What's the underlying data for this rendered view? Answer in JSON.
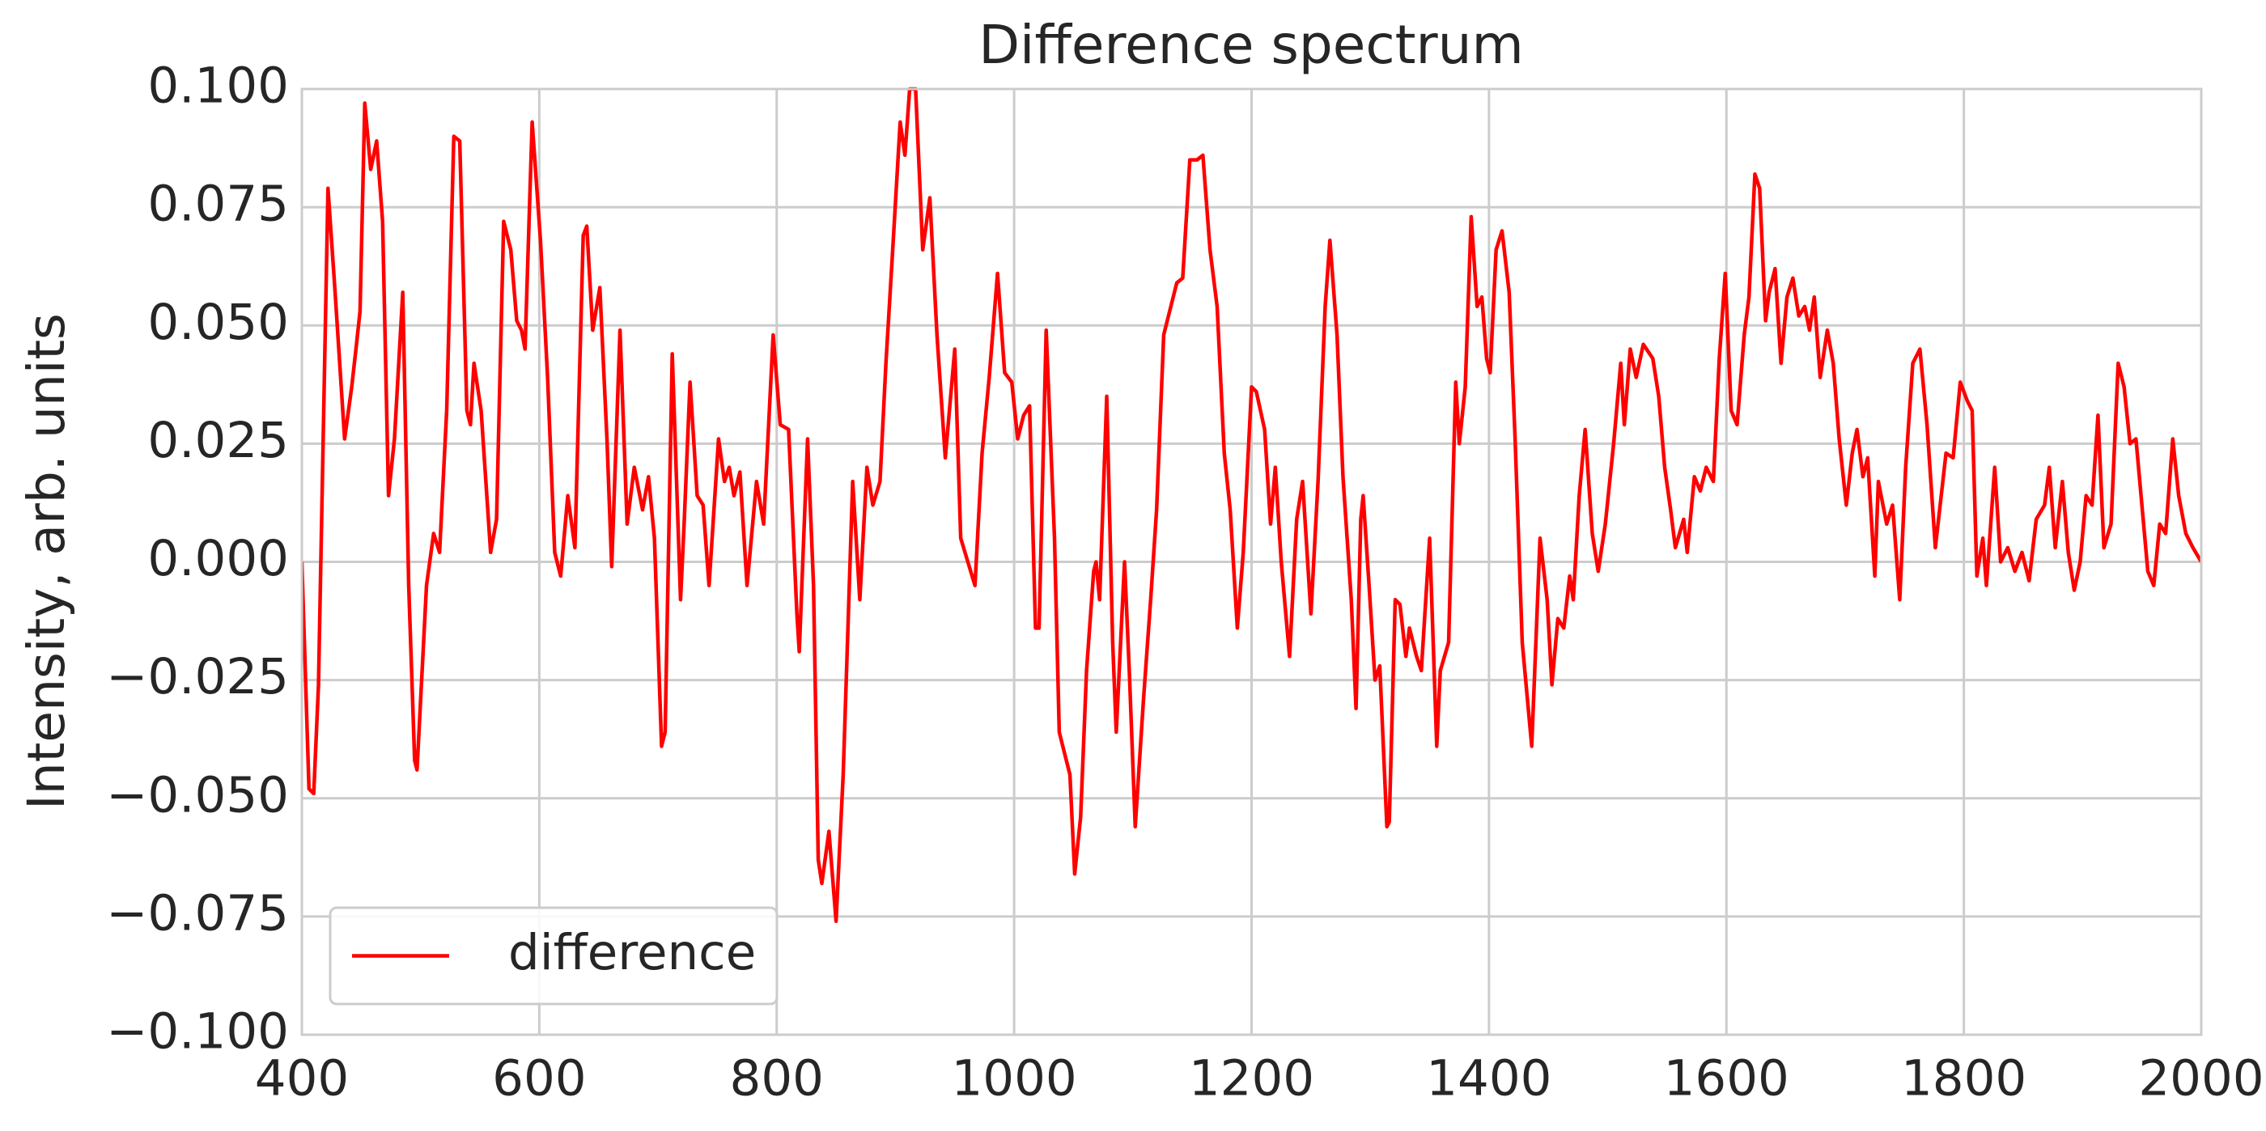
{
  "chart_data": {
    "type": "line",
    "title": "Difference spectrum",
    "y_label": "Intensity, arb. units",
    "x": [
      400,
      406,
      410,
      414,
      422,
      428,
      436,
      442,
      446,
      449,
      453,
      458,
      463,
      468,
      473,
      478,
      485,
      490,
      495,
      497,
      505,
      511,
      516,
      522,
      528,
      533,
      539,
      542,
      545,
      551,
      559,
      564,
      570,
      576,
      581,
      585,
      588,
      594,
      601,
      607,
      613,
      618,
      624,
      630,
      637,
      640,
      645,
      651,
      657,
      661,
      668,
      674,
      680,
      687,
      692,
      697,
      703,
      706,
      712,
      719,
      722,
      727,
      733,
      738,
      743,
      751,
      756,
      760,
      764,
      769,
      775,
      783,
      789,
      797,
      803,
      810,
      817,
      819,
      826,
      831,
      835,
      838,
      844,
      850,
      856,
      864,
      870,
      876,
      881,
      887,
      892,
      897,
      904,
      908,
      912,
      917,
      923,
      929,
      935,
      942,
      950,
      955,
      961,
      967,
      973,
      979,
      986,
      992,
      998,
      1003,
      1008,
      1013,
      1018,
      1021,
      1027,
      1034,
      1038,
      1042,
      1047,
      1051,
      1056,
      1061,
      1067,
      1069,
      1072,
      1078,
      1083,
      1086,
      1093,
      1097,
      1102,
      1109,
      1115,
      1120,
      1126,
      1132,
      1137,
      1142,
      1148,
      1154,
      1159,
      1165,
      1171,
      1177,
      1182,
      1188,
      1193,
      1200,
      1204,
      1211,
      1216,
      1220,
      1225,
      1232,
      1238,
      1243,
      1250,
      1256,
      1262,
      1266,
      1272,
      1277,
      1284,
      1288,
      1292,
      1294,
      1299,
      1304,
      1308,
      1314,
      1316,
      1321,
      1325,
      1330,
      1333,
      1339,
      1343,
      1350,
      1356,
      1359,
      1366,
      1372,
      1375,
      1380,
      1385,
      1390,
      1394,
      1398,
      1401,
      1406,
      1411,
      1417,
      1422,
      1428,
      1436,
      1443,
      1449,
      1453,
      1458,
      1463,
      1468,
      1471,
      1476,
      1481,
      1487,
      1492,
      1498,
      1505,
      1511,
      1514,
      1519,
      1524,
      1530,
      1538,
      1543,
      1548,
      1553,
      1557,
      1564,
      1567,
      1573,
      1578,
      1583,
      1589,
      1594,
      1599,
      1604,
      1609,
      1615,
      1619,
      1624,
      1628,
      1633,
      1636,
      1641,
      1646,
      1651,
      1656,
      1661,
      1666,
      1670,
      1674,
      1679,
      1685,
      1690,
      1695,
      1701,
      1706,
      1710,
      1715,
      1719,
      1725,
      1728,
      1735,
      1740,
      1746,
      1751,
      1757,
      1763,
      1769,
      1776,
      1785,
      1791,
      1797,
      1803,
      1807,
      1811,
      1816,
      1819,
      1826,
      1831,
      1837,
      1843,
      1849,
      1855,
      1861,
      1868,
      1872,
      1877,
      1883,
      1888,
      1893,
      1898,
      1903,
      1908,
      1913,
      1918,
      1924,
      1930,
      1935,
      1940,
      1945,
      1950,
      1955,
      1960,
      1965,
      1970,
      1976,
      1981,
      1987,
      1993,
      2000
    ],
    "series": [
      {
        "name": "difference",
        "color": "#ff0000",
        "values": [
          0.0,
          -0.048,
          -0.049,
          -0.026,
          0.079,
          0.057,
          0.026,
          0.037,
          0.046,
          0.053,
          0.097,
          0.083,
          0.089,
          0.072,
          0.014,
          0.026,
          0.057,
          -0.005,
          -0.042,
          -0.044,
          -0.005,
          0.006,
          0.002,
          0.032,
          0.09,
          0.089,
          0.032,
          0.029,
          0.042,
          0.032,
          0.002,
          0.009,
          0.072,
          0.066,
          0.051,
          0.049,
          0.045,
          0.093,
          0.068,
          0.039,
          0.002,
          -0.003,
          0.014,
          0.003,
          0.069,
          0.071,
          0.049,
          0.058,
          0.026,
          -0.001,
          0.049,
          0.008,
          0.02,
          0.011,
          0.018,
          0.005,
          -0.039,
          -0.036,
          0.044,
          -0.008,
          0.008,
          0.038,
          0.014,
          0.012,
          -0.005,
          0.026,
          0.017,
          0.02,
          0.014,
          0.019,
          -0.005,
          0.017,
          0.008,
          0.048,
          0.029,
          0.028,
          -0.011,
          -0.019,
          0.026,
          -0.005,
          -0.063,
          -0.068,
          -0.057,
          -0.076,
          -0.045,
          0.017,
          -0.008,
          0.02,
          0.012,
          0.017,
          0.042,
          0.063,
          0.093,
          0.086,
          0.1,
          0.1,
          0.066,
          0.077,
          0.048,
          0.022,
          0.045,
          0.005,
          0.0,
          -0.005,
          0.023,
          0.039,
          0.061,
          0.04,
          0.038,
          0.026,
          0.031,
          0.033,
          -0.014,
          -0.014,
          0.049,
          0.005,
          -0.036,
          -0.04,
          -0.045,
          -0.066,
          -0.054,
          -0.023,
          -0.002,
          0.0,
          -0.008,
          0.035,
          -0.017,
          -0.036,
          0.0,
          -0.023,
          -0.056,
          -0.029,
          -0.008,
          0.011,
          0.048,
          0.054,
          0.059,
          0.06,
          0.085,
          0.085,
          0.086,
          0.066,
          0.054,
          0.023,
          0.011,
          -0.014,
          0.002,
          0.037,
          0.036,
          0.028,
          0.008,
          0.02,
          0.0,
          -0.02,
          0.009,
          0.017,
          -0.011,
          0.017,
          0.054,
          0.068,
          0.048,
          0.018,
          -0.008,
          -0.031,
          0.009,
          0.014,
          -0.005,
          -0.025,
          -0.022,
          -0.056,
          -0.055,
          -0.008,
          -0.009,
          -0.02,
          -0.014,
          -0.02,
          -0.023,
          0.005,
          -0.039,
          -0.023,
          -0.017,
          0.038,
          0.025,
          0.037,
          0.073,
          0.054,
          0.056,
          0.043,
          0.04,
          0.066,
          0.07,
          0.057,
          0.026,
          -0.017,
          -0.039,
          0.005,
          -0.008,
          -0.026,
          -0.012,
          -0.014,
          -0.003,
          -0.008,
          0.014,
          0.028,
          0.006,
          -0.002,
          0.008,
          0.025,
          0.042,
          0.029,
          0.045,
          0.039,
          0.046,
          0.043,
          0.035,
          0.02,
          0.011,
          0.003,
          0.009,
          0.002,
          0.018,
          0.015,
          0.02,
          0.017,
          0.043,
          0.061,
          0.032,
          0.029,
          0.048,
          0.056,
          0.082,
          0.079,
          0.051,
          0.057,
          0.062,
          0.042,
          0.056,
          0.06,
          0.052,
          0.054,
          0.049,
          0.056,
          0.039,
          0.049,
          0.042,
          0.026,
          0.012,
          0.023,
          0.028,
          0.018,
          0.022,
          -0.003,
          0.017,
          0.008,
          0.012,
          -0.008,
          0.02,
          0.042,
          0.045,
          0.029,
          0.003,
          0.023,
          0.022,
          0.038,
          0.034,
          0.032,
          -0.003,
          0.005,
          -0.005,
          0.02,
          0.0,
          0.003,
          -0.002,
          0.002,
          -0.004,
          0.009,
          0.012,
          0.02,
          0.003,
          0.017,
          0.002,
          -0.006,
          0.0,
          0.014,
          0.012,
          0.031,
          0.003,
          0.008,
          0.042,
          0.037,
          0.025,
          0.026,
          0.012,
          -0.002,
          -0.005,
          0.008,
          0.006,
          0.026,
          0.014,
          0.006,
          0.003,
          0.0
        ]
      }
    ],
    "xlim": [
      400,
      2000
    ],
    "xticks": [
      400,
      600,
      800,
      1000,
      1200,
      1400,
      1600,
      1800,
      2000
    ],
    "ylim": [
      -0.1,
      0.1
    ],
    "yticks": [
      {
        "value": -0.1,
        "label": "−0.100"
      },
      {
        "value": -0.075,
        "label": "−0.075"
      },
      {
        "value": -0.05,
        "label": "−0.050"
      },
      {
        "value": -0.025,
        "label": "−0.025"
      },
      {
        "value": 0,
        "label": "0.000"
      },
      {
        "value": 0.025,
        "label": "0.025"
      },
      {
        "value": 0.05,
        "label": "0.050"
      },
      {
        "value": 0.075,
        "label": "0.075"
      },
      {
        "value": 0.1,
        "label": "0.100"
      }
    ],
    "grid": true,
    "legend": "lower left"
  }
}
